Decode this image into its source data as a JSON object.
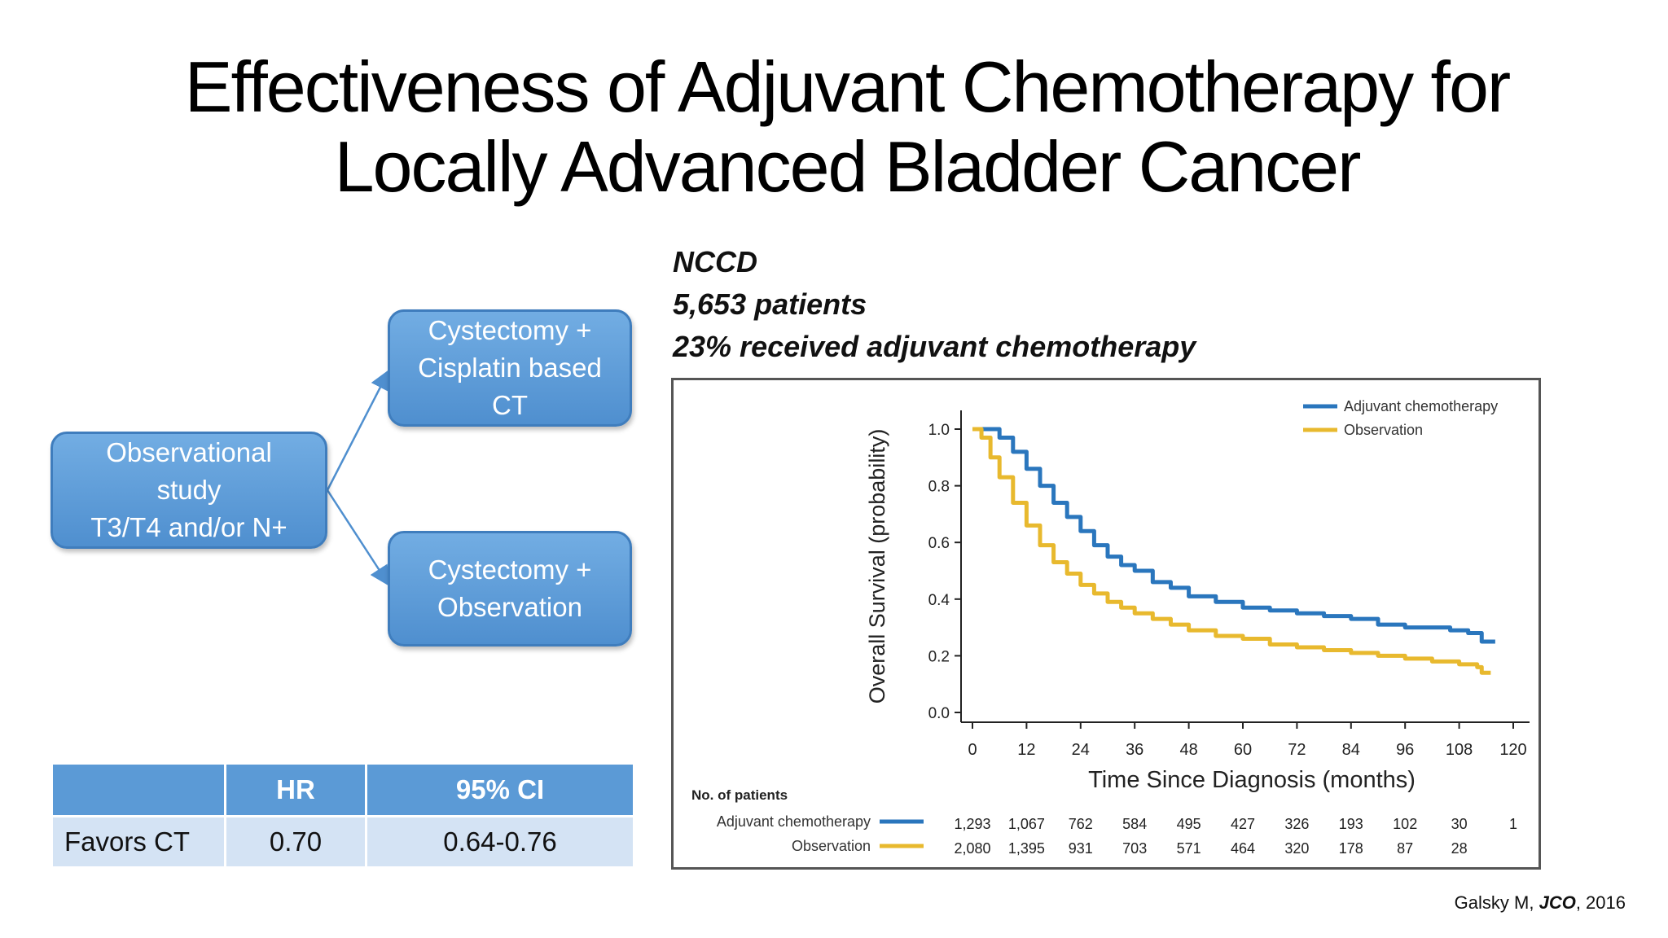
{
  "slide": {
    "title_line1": "Effectiveness of Adjuvant Chemotherapy for",
    "title_line2": "Locally Advanced Bladder Cancer",
    "study_name": "NCCD",
    "study_patients": "5,653 patients",
    "study_received": "23% received adjuvant chemotherapy",
    "citation_author": "Galsky M, ",
    "citation_journal": "JCO",
    "citation_year": ", 2016"
  },
  "diagram": {
    "observational": [
      "Observational",
      "study",
      "T3/T4 and/or N+"
    ],
    "arm_ct": [
      "Cystectomy +",
      "Cisplatin based",
      "CT"
    ],
    "arm_obs": [
      "Cystectomy +",
      "Observation"
    ]
  },
  "hr_table": {
    "headers": [
      "",
      "HR",
      "95% CI"
    ],
    "row": [
      "Favors CT",
      "0.70",
      "0.64-0.76"
    ]
  },
  "colors": {
    "adjuvant": "#2a76bd",
    "observation": "#e8b92e",
    "box_fill": "#5b9ad6",
    "table_header": "#5b9ad6",
    "table_row": "#d4e3f4"
  },
  "chart_data": {
    "type": "line",
    "title": "",
    "xlabel": "Time Since Diagnosis (months)",
    "ylabel": "Overall Survival (probability)",
    "xlim": [
      0,
      120
    ],
    "ylim": [
      0,
      1.0
    ],
    "x_ticks": [
      "0",
      "12",
      "24",
      "36",
      "48",
      "60",
      "72",
      "84",
      "96",
      "108",
      "120"
    ],
    "y_ticks": [
      "0.0",
      "0.2",
      "0.4",
      "0.6",
      "0.8",
      "1.0"
    ],
    "legend_position": "top-right",
    "grid": false,
    "series": [
      {
        "name": "Adjuvant chemotherapy",
        "color": "#2a76bd",
        "x": [
          0,
          3,
          6,
          9,
          12,
          15,
          18,
          21,
          24,
          27,
          30,
          33,
          36,
          40,
          44,
          48,
          54,
          60,
          66,
          72,
          78,
          84,
          90,
          96,
          102,
          106,
          108,
          110,
          113,
          116
        ],
        "y": [
          1.0,
          1.0,
          0.97,
          0.92,
          0.86,
          0.8,
          0.74,
          0.69,
          0.64,
          0.59,
          0.55,
          0.52,
          0.5,
          0.46,
          0.44,
          0.41,
          0.39,
          0.37,
          0.36,
          0.35,
          0.34,
          0.33,
          0.31,
          0.3,
          0.3,
          0.29,
          0.29,
          0.28,
          0.25,
          0.25
        ]
      },
      {
        "name": "Observation",
        "color": "#e8b92e",
        "x": [
          0,
          2,
          4,
          6,
          9,
          12,
          15,
          18,
          21,
          24,
          27,
          30,
          33,
          36,
          40,
          44,
          48,
          54,
          60,
          66,
          72,
          78,
          84,
          90,
          96,
          102,
          106,
          108,
          110,
          112,
          113,
          115
        ],
        "y": [
          1.0,
          0.97,
          0.9,
          0.83,
          0.74,
          0.66,
          0.59,
          0.53,
          0.49,
          0.45,
          0.42,
          0.39,
          0.37,
          0.35,
          0.33,
          0.31,
          0.29,
          0.27,
          0.26,
          0.24,
          0.23,
          0.22,
          0.21,
          0.2,
          0.19,
          0.18,
          0.18,
          0.17,
          0.17,
          0.16,
          0.14,
          0.14
        ]
      }
    ],
    "risk_table": {
      "title": "No. of patients",
      "rows": [
        {
          "label": "Adjuvant chemotherapy",
          "color": "#2a76bd",
          "values": [
            "1,293",
            "1,067",
            "762",
            "584",
            "495",
            "427",
            "326",
            "193",
            "102",
            "30",
            "1"
          ]
        },
        {
          "label": "Observation",
          "color": "#e8b92e",
          "values": [
            "2,080",
            "1,395",
            "931",
            "703",
            "571",
            "464",
            "320",
            "178",
            "87",
            "28",
            ""
          ]
        }
      ]
    }
  }
}
